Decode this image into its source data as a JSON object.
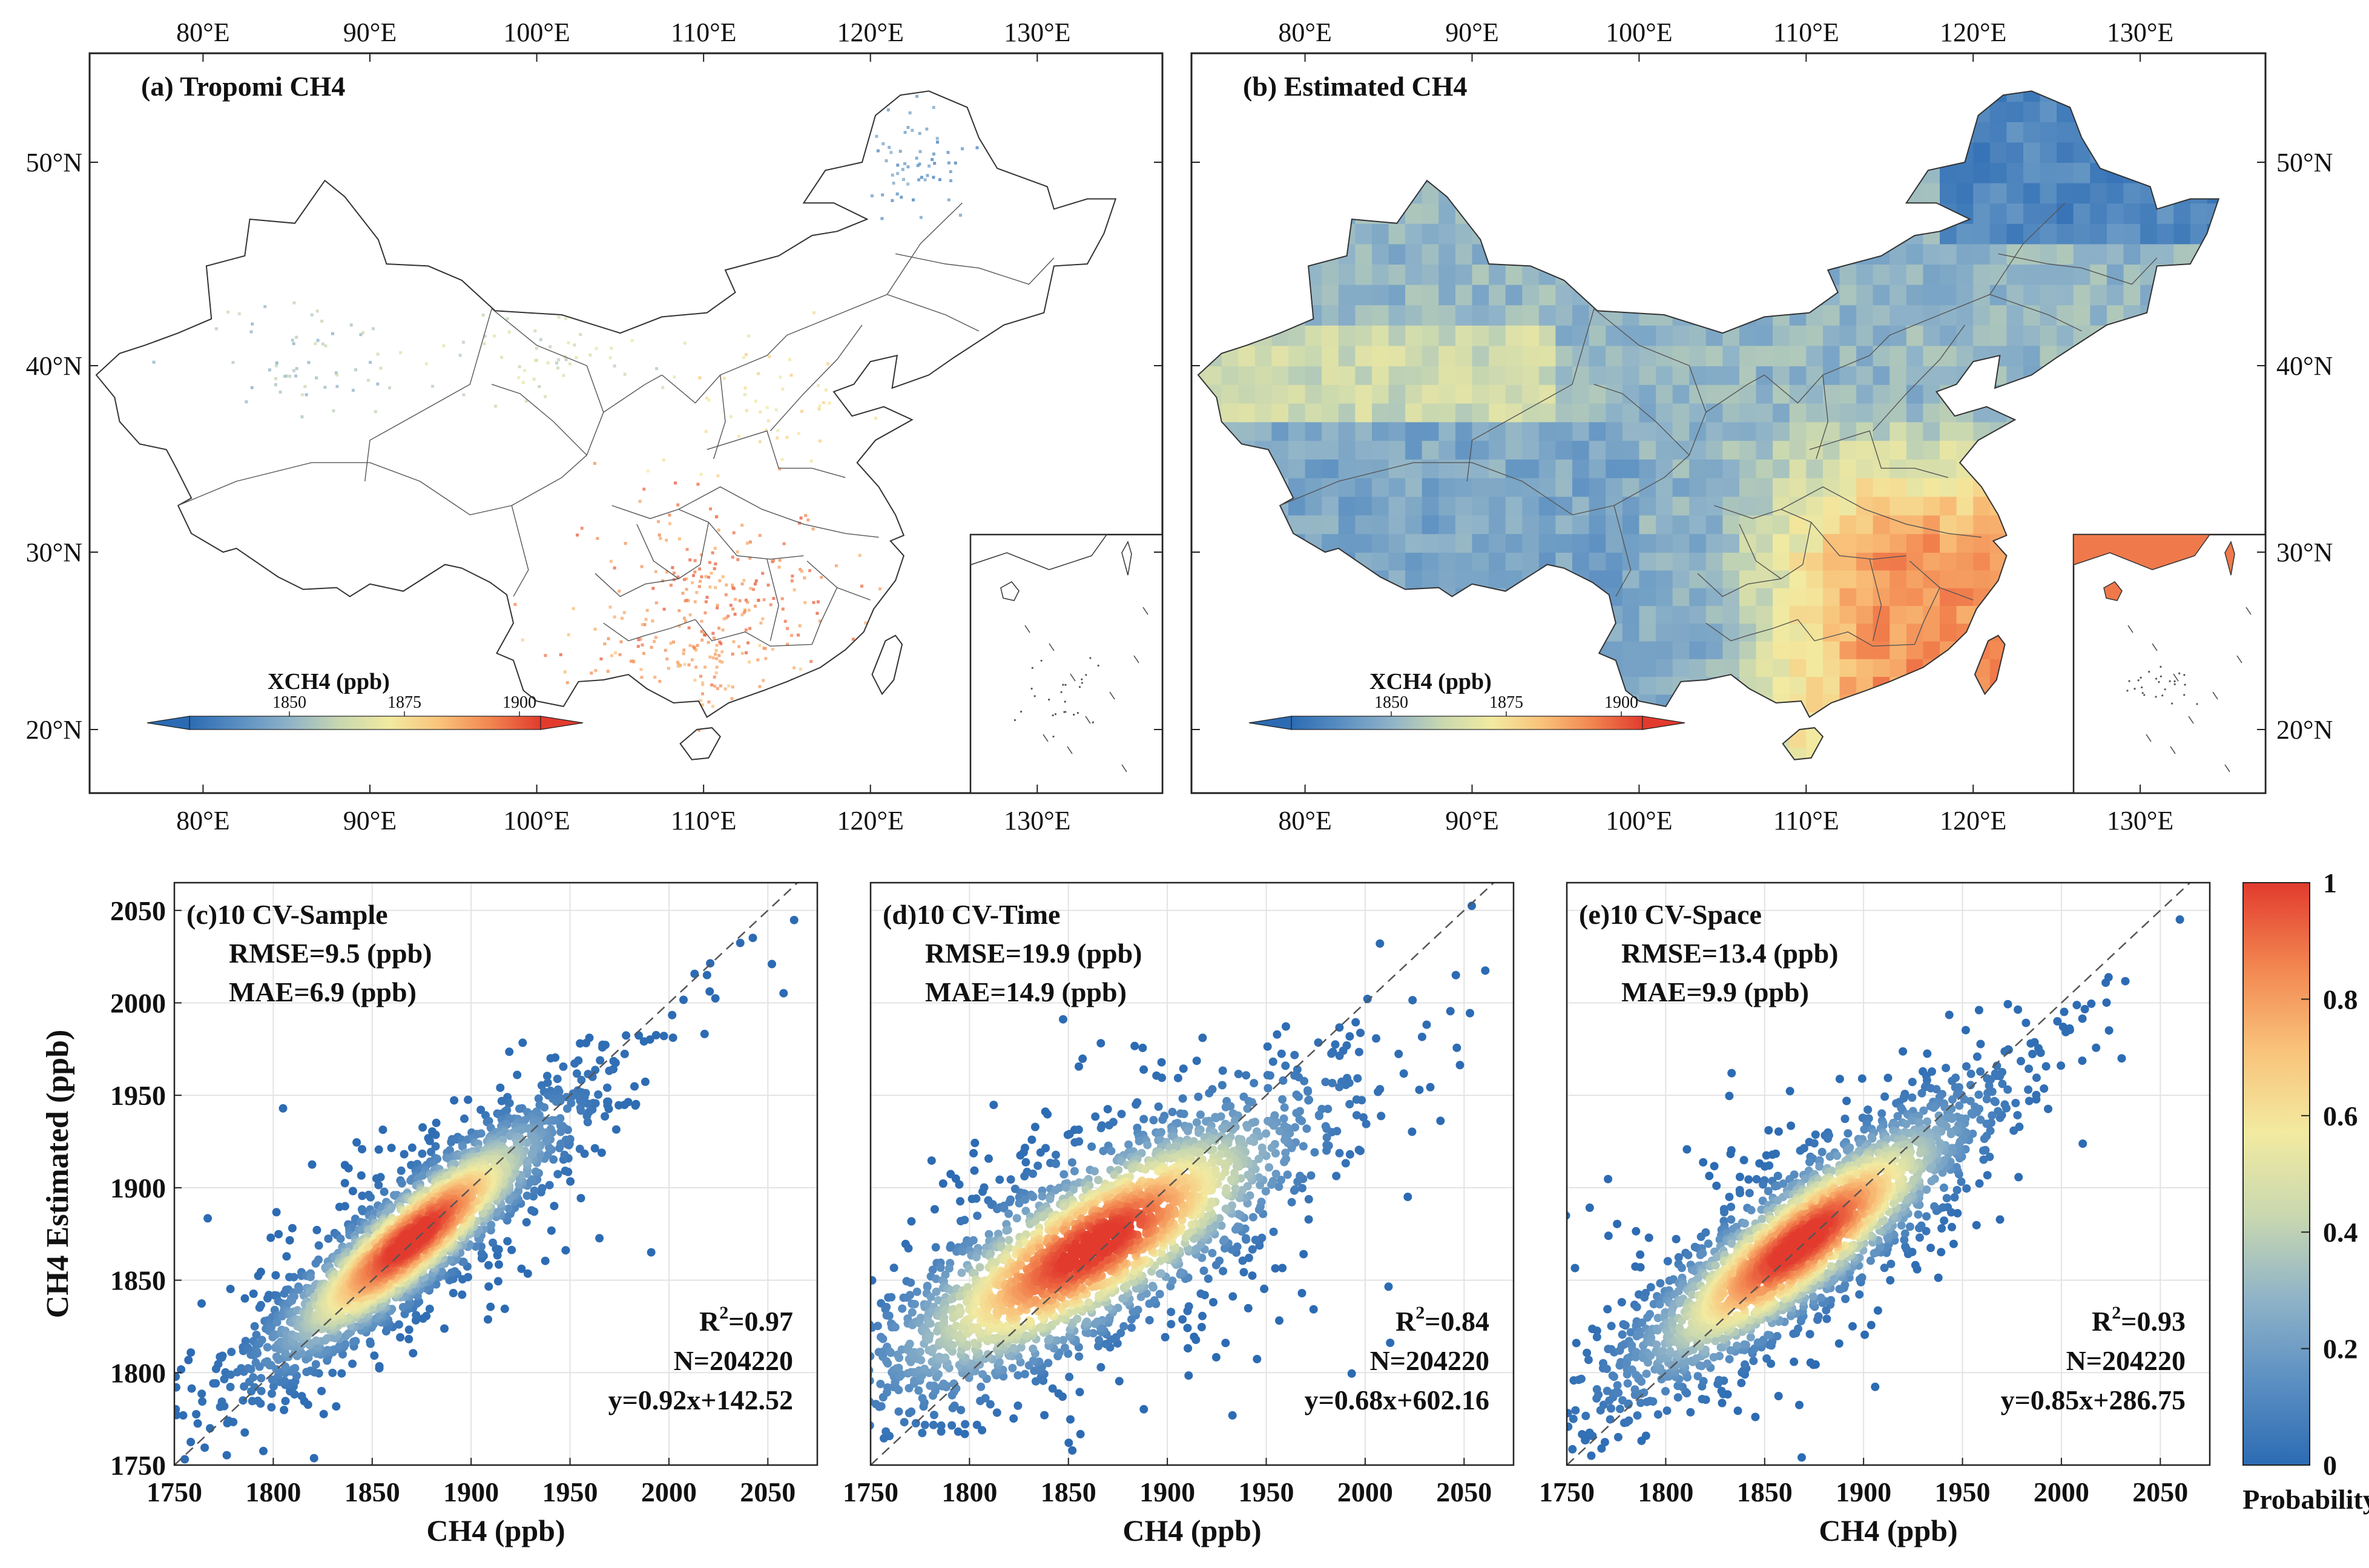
{
  "maps": [
    {
      "label": "(a) Tropomi CH4",
      "variant": "sparse",
      "colorbar_title": "XCH4 (ppb)",
      "colorbar_ticks": [
        "1850",
        "1875",
        "1900"
      ],
      "show_right_lat": false
    },
    {
      "label": "(b) Estimated CH4",
      "variant": "full",
      "colorbar_title": "XCH4 (ppb)",
      "colorbar_ticks": [
        "1850",
        "1875",
        "1900"
      ],
      "show_right_lat": true
    }
  ],
  "map_axes": {
    "lon_ticks": [
      "80°E",
      "90°E",
      "100°E",
      "110°E",
      "120°E",
      "130°E"
    ],
    "lat_ticks": [
      "50°N",
      "40°N",
      "30°N",
      "20°N"
    ]
  },
  "colors": {
    "colormap": [
      "#2c6bb3",
      "#5b8fc2",
      "#8fb3c8",
      "#c9d8b0",
      "#f2eaa0",
      "#f9c27a",
      "#f28550",
      "#e23b2e"
    ],
    "reference_line": "#555555",
    "grid": "#e3e3e3",
    "boundary": "#333333"
  },
  "scatter": {
    "y_axis_label": "CH4 Estimated (ppb)",
    "x_axis_label": "CH4 (ppb)",
    "colorbar_label": "Probability",
    "colorbar_ticks": [
      "0",
      "0.2",
      "0.4",
      "0.6",
      "0.8",
      "1"
    ]
  },
  "chart_data": [
    {
      "type": "scatter",
      "title": "(c)10 CV-Sample",
      "rmse": "RMSE=9.5 (ppb)",
      "mae": "MAE=6.9 (ppb)",
      "r2_prefix": "R",
      "r2_value": "=0.97",
      "n_label": "N=204220",
      "equation": "y=0.92x+142.52",
      "slope": 0.92,
      "intercept": 142.52,
      "xlim": [
        1750,
        2075
      ],
      "ylim": [
        1750,
        2065
      ],
      "xticks": [
        "1750",
        "1800",
        "1850",
        "1900",
        "1950",
        "2000",
        "2050"
      ],
      "yticks": [
        "1750",
        "1800",
        "1850",
        "1900",
        "1950",
        "2000",
        "2050"
      ],
      "center": [
        1870,
        1872
      ],
      "spread_major": 48,
      "spread_minor": 12
    },
    {
      "type": "scatter",
      "title": "(d)10 CV-Time",
      "rmse": "RMSE=19.9 (ppb)",
      "mae": "MAE=14.9 (ppb)",
      "r2_prefix": "R",
      "r2_value": "=0.84",
      "n_label": "N=204220",
      "equation": "y=0.68x+602.16",
      "slope": 0.68,
      "intercept": 602.16,
      "xlim": [
        1750,
        2075
      ],
      "ylim": [
        1750,
        2065
      ],
      "xticks": [
        "1750",
        "1800",
        "1850",
        "1900",
        "1950",
        "2000",
        "2050"
      ],
      "yticks": [],
      "center": [
        1862,
        1868
      ],
      "spread_major": 62,
      "spread_minor": 20
    },
    {
      "type": "scatter",
      "title": "(e)10 CV-Space",
      "rmse": "RMSE=13.4 (ppb)",
      "mae": "MAE=9.9 (ppb)",
      "r2_prefix": "R",
      "r2_value": "=0.93",
      "n_label": "N=204220",
      "equation": "y=0.85x+286.75",
      "slope": 0.85,
      "intercept": 286.75,
      "xlim": [
        1750,
        2075
      ],
      "ylim": [
        1750,
        2065
      ],
      "xticks": [
        "1750",
        "1800",
        "1850",
        "1900",
        "1950",
        "2000",
        "2050"
      ],
      "yticks": [],
      "center": [
        1868,
        1870
      ],
      "spread_major": 55,
      "spread_minor": 15
    }
  ]
}
